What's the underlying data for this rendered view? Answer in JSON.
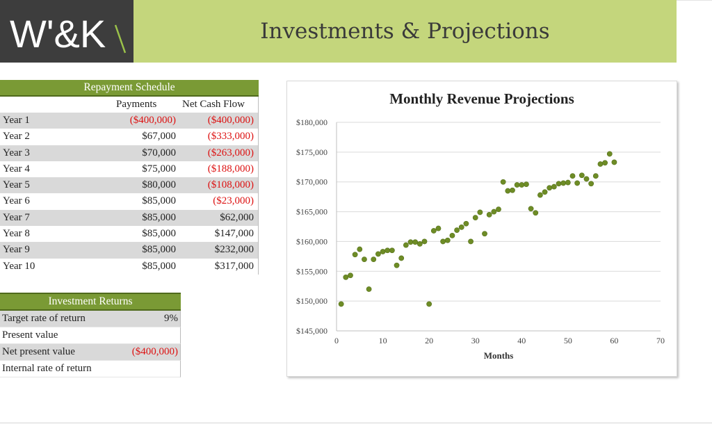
{
  "brand": {
    "logo_text": "W'&K"
  },
  "header": {
    "title": "Investments & Projections"
  },
  "repayment": {
    "title": "Repayment Schedule",
    "col_payments": "Payments",
    "col_net": "Net Cash Flow",
    "rows": [
      {
        "year": "Year 1",
        "payment": "($400,000)",
        "net": "($400,000)",
        "payment_negative": true,
        "net_negative": true
      },
      {
        "year": "Year 2",
        "payment": "$67,000",
        "net": "($333,000)",
        "payment_negative": false,
        "net_negative": true
      },
      {
        "year": "Year 3",
        "payment": "$70,000",
        "net": "($263,000)",
        "payment_negative": false,
        "net_negative": true
      },
      {
        "year": "Year 4",
        "payment": "$75,000",
        "net": "($188,000)",
        "payment_negative": false,
        "net_negative": true
      },
      {
        "year": "Year 5",
        "payment": "$80,000",
        "net": "($108,000)",
        "payment_negative": false,
        "net_negative": true
      },
      {
        "year": "Year 6",
        "payment": "$85,000",
        "net": "($23,000)",
        "payment_negative": false,
        "net_negative": true
      },
      {
        "year": "Year 7",
        "payment": "$85,000",
        "net": "$62,000",
        "payment_negative": false,
        "net_negative": false
      },
      {
        "year": "Year 8",
        "payment": "$85,000",
        "net": "$147,000",
        "payment_negative": false,
        "net_negative": false
      },
      {
        "year": "Year 9",
        "payment": "$85,000",
        "net": "$232,000",
        "payment_negative": false,
        "net_negative": false
      },
      {
        "year": "Year 10",
        "payment": "$85,000",
        "net": "$317,000",
        "payment_negative": false,
        "net_negative": false
      }
    ]
  },
  "investment": {
    "title": "Investment Returns",
    "rows": [
      {
        "label": "Target rate of return",
        "value": "9%",
        "negative": false
      },
      {
        "label": "Present value",
        "value": "",
        "negative": false
      },
      {
        "label": "Net present value",
        "value": "($400,000)",
        "negative": true
      },
      {
        "label": "Internal rate of return",
        "value": "",
        "negative": false
      }
    ]
  },
  "colors": {
    "accent": "#7a9a35",
    "banner": "#c4d67c",
    "marker": "#6e8c26",
    "negative": "#dd1111",
    "logo_bg": "#3d3d3d"
  },
  "chart_data": {
    "type": "scatter",
    "title": "Monthly Revenue Projections",
    "xlabel": "Months",
    "ylabel": "",
    "xlim": [
      0,
      70
    ],
    "ylim": [
      145000,
      180000
    ],
    "x_ticks": [
      "0",
      "10",
      "20",
      "30",
      "40",
      "50",
      "60",
      "70"
    ],
    "y_ticks": [
      "$145,000",
      "$150,000",
      "$155,000",
      "$160,000",
      "$165,000",
      "$170,000",
      "$175,000",
      "$180,000"
    ],
    "grid": "horizontal",
    "legend": "none",
    "x": [
      1,
      2,
      3,
      4,
      5,
      6,
      7,
      8,
      9,
      10,
      11,
      12,
      13,
      14,
      15,
      16,
      17,
      18,
      19,
      20,
      21,
      22,
      23,
      24,
      25,
      26,
      27,
      28,
      29,
      30,
      31,
      32,
      33,
      34,
      35,
      36,
      37,
      38,
      39,
      40,
      41,
      42,
      43,
      44,
      45,
      46,
      47,
      48,
      49,
      50,
      51,
      52,
      53,
      54,
      55,
      56,
      57,
      58,
      59,
      60
    ],
    "y": [
      149500,
      154000,
      154300,
      157800,
      158700,
      157000,
      152000,
      157000,
      157900,
      158300,
      158500,
      158500,
      156000,
      157200,
      159400,
      159900,
      159900,
      159600,
      160000,
      149500,
      161800,
      162200,
      160000,
      160200,
      161000,
      161900,
      162400,
      163000,
      160000,
      164000,
      164900,
      161300,
      164500,
      165000,
      165400,
      170000,
      168500,
      168600,
      169500,
      169500,
      169600,
      165500,
      164800,
      167800,
      168300,
      169000,
      169200,
      169700,
      169800,
      169900,
      171000,
      169800,
      171100,
      170500,
      169700,
      171000,
      173000,
      173200,
      174700,
      173300
    ]
  }
}
